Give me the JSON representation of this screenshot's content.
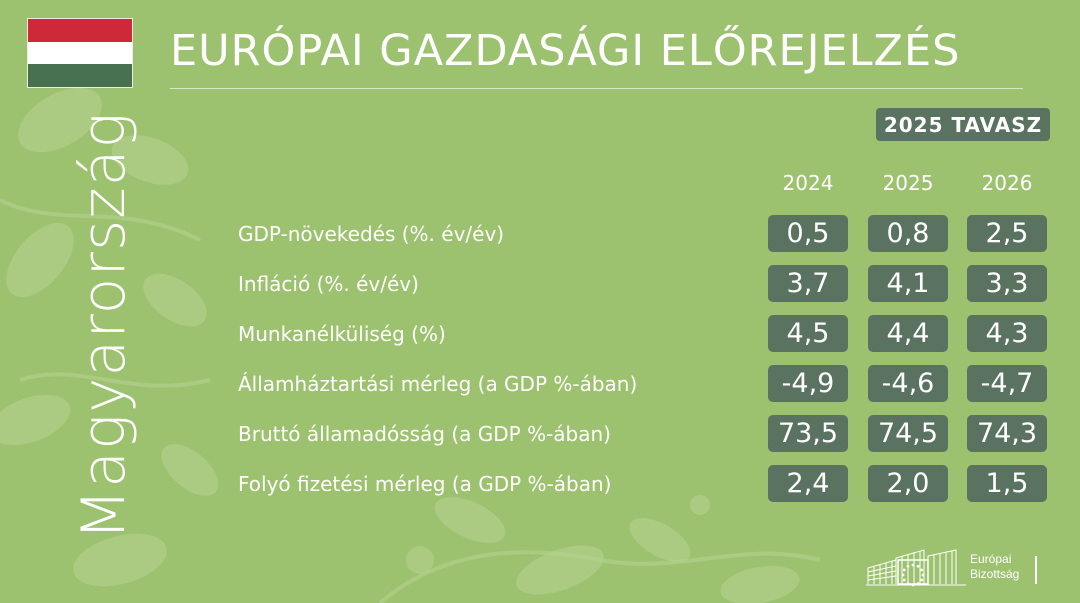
{
  "header": {
    "title": "EURÓPAI GAZDASÁGI ELŐREJELZÉS",
    "country": "Magyarország",
    "season_badge": "2025 TAVASZ"
  },
  "flag": {
    "colors": [
      "#ce2939",
      "#ffffff",
      "#477050"
    ]
  },
  "logo": {
    "line1": "Európai",
    "line2": "Bizottság",
    "icon": "european-commission-logo-icon"
  },
  "colors": {
    "background": "#9dc26f",
    "cell": "#5a7260",
    "text": "#ffffff"
  },
  "chart_data": {
    "type": "table",
    "columns": [
      "2024",
      "2025",
      "2026"
    ],
    "rows": [
      {
        "label": "GDP-növekedés (%. év/év)",
        "values": [
          "0,5",
          "0,8",
          "2,5"
        ]
      },
      {
        "label": "Infláció (%. év/év)",
        "values": [
          "3,7",
          "4,1",
          "3,3"
        ]
      },
      {
        "label": "Munkanélküliség (%)",
        "values": [
          "4,5",
          "4,4",
          "4,3"
        ]
      },
      {
        "label": "Államháztartási mérleg (a GDP %-ában)",
        "values": [
          "-4,9",
          "-4,6",
          "-4,7"
        ]
      },
      {
        "label": "Bruttó államadósság (a GDP %-ában)",
        "values": [
          "73,5",
          "74,5",
          "74,3"
        ]
      },
      {
        "label": "Folyó fizetési mérleg (a GDP %-ában)",
        "values": [
          "2,4",
          "2,0",
          "1,5"
        ]
      }
    ]
  }
}
